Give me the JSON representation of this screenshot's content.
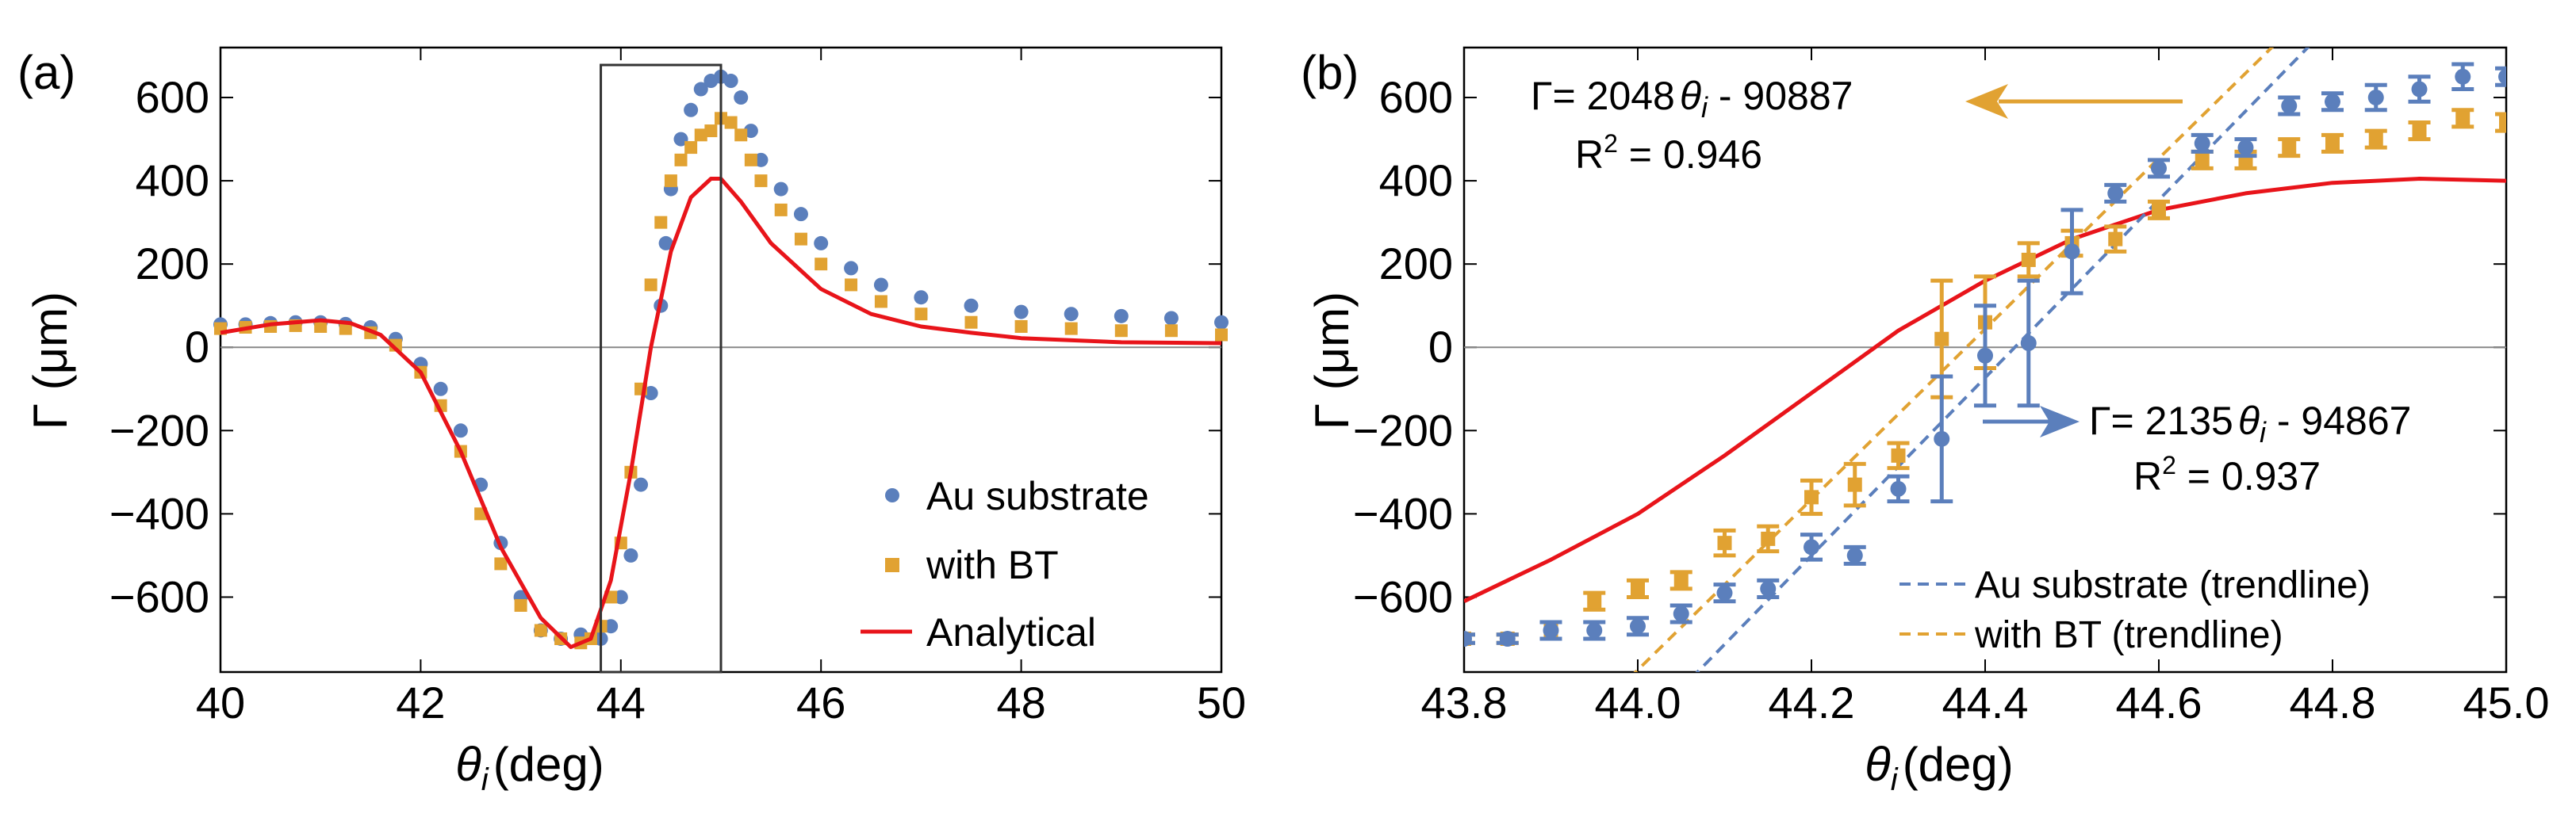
{
  "colors": {
    "blue": "#5B7FBC",
    "orange": "#E1A232",
    "red": "#E8141A",
    "frame": "#000000",
    "zero": "#888888",
    "box": "#333333"
  },
  "panel_a": {
    "label": "(a)",
    "ylabel": "Γ (μm)",
    "xlabel_theta": "θ",
    "xlabel_sub": "i",
    "xlabel_unit": "(deg)",
    "legend": [
      "Au substrate",
      "with BT",
      "Analytical"
    ]
  },
  "panel_b": {
    "label": "(b)",
    "ylabel": "Γ (μm)",
    "xlabel_theta": "θ",
    "xlabel_sub": "i",
    "xlabel_unit": "(deg)",
    "fit_bt": {
      "eq_prefix": "Γ= 2048",
      "eq_suffix": " - 90887",
      "r2_prefix": "R",
      "r2_sup": "2",
      "r2_value": " = 0.946"
    },
    "fit_au": {
      "eq_prefix": "Γ= 2135",
      "eq_suffix": " - 94867",
      "r2_prefix": "R",
      "r2_sup": "2",
      "r2_value": " = 0.937"
    },
    "legend": [
      "Au substrate (trendline)",
      "with BT (trendline)"
    ]
  },
  "chart_data": [
    {
      "type": "scatter",
      "title": "(a)",
      "xlabel": "θi (deg)",
      "ylabel": "Γ (μm)",
      "xlim": [
        40,
        50
      ],
      "ylim": [
        -780,
        720
      ],
      "xticks": [
        40,
        42,
        44,
        46,
        48,
        50
      ],
      "yticks": [
        -600,
        -400,
        -200,
        0,
        200,
        400,
        600
      ],
      "highlight_box": {
        "x": [
          43.8,
          45.0
        ],
        "y": [
          -780,
          720
        ]
      },
      "series": [
        {
          "name": "Au substrate",
          "marker": "circle",
          "x": [
            40.0,
            40.25,
            40.5,
            40.75,
            41.0,
            41.25,
            41.5,
            41.75,
            42.0,
            42.2,
            42.4,
            42.6,
            42.8,
            43.0,
            43.2,
            43.4,
            43.6,
            43.8,
            43.9,
            44.0,
            44.1,
            44.2,
            44.3,
            44.4,
            44.45,
            44.5,
            44.6,
            44.7,
            44.8,
            44.9,
            45.0,
            45.1,
            45.2,
            45.3,
            45.4,
            45.6,
            45.8,
            46.0,
            46.3,
            46.6,
            47.0,
            47.5,
            48.0,
            48.5,
            49.0,
            49.5,
            50.0
          ],
          "y": [
            55,
            55,
            58,
            60,
            60,
            56,
            48,
            20,
            -40,
            -100,
            -200,
            -330,
            -470,
            -600,
            -680,
            -700,
            -690,
            -700,
            -670,
            -600,
            -500,
            -330,
            -110,
            100,
            250,
            380,
            500,
            570,
            620,
            640,
            650,
            640,
            600,
            520,
            450,
            380,
            320,
            250,
            190,
            150,
            120,
            100,
            85,
            80,
            75,
            70,
            60
          ]
        },
        {
          "name": "with BT",
          "marker": "square",
          "x": [
            40.0,
            40.25,
            40.5,
            40.75,
            41.0,
            41.25,
            41.5,
            41.75,
            42.0,
            42.2,
            42.4,
            42.6,
            42.8,
            43.0,
            43.2,
            43.4,
            43.6,
            43.7,
            43.8,
            43.9,
            44.0,
            44.1,
            44.2,
            44.3,
            44.4,
            44.5,
            44.6,
            44.7,
            44.8,
            44.9,
            45.0,
            45.1,
            45.2,
            45.3,
            45.4,
            45.6,
            45.8,
            46.0,
            46.3,
            46.6,
            47.0,
            47.5,
            48.0,
            48.5,
            49.0,
            49.5,
            50.0
          ],
          "y": [
            45,
            48,
            50,
            52,
            50,
            45,
            35,
            5,
            -60,
            -140,
            -250,
            -400,
            -520,
            -620,
            -680,
            -700,
            -710,
            -700,
            -670,
            -600,
            -470,
            -300,
            -100,
            150,
            300,
            400,
            450,
            480,
            510,
            520,
            550,
            540,
            510,
            450,
            400,
            330,
            260,
            200,
            150,
            110,
            80,
            60,
            50,
            45,
            40,
            40,
            30
          ]
        },
        {
          "name": "Analytical",
          "marker": "line",
          "x": [
            40.0,
            40.5,
            41.0,
            41.3,
            41.6,
            42.0,
            42.4,
            42.8,
            43.2,
            43.5,
            43.7,
            43.9,
            44.1,
            44.3,
            44.5,
            44.7,
            44.9,
            45.0,
            45.2,
            45.5,
            46.0,
            46.5,
            47.0,
            47.5,
            48.0,
            49.0,
            50.0
          ],
          "y": [
            35,
            55,
            65,
            58,
            30,
            -60,
            -250,
            -480,
            -650,
            -720,
            -700,
            -560,
            -300,
            0,
            230,
            360,
            405,
            405,
            350,
            250,
            140,
            80,
            50,
            35,
            22,
            12,
            10
          ]
        }
      ]
    },
    {
      "type": "scatter",
      "title": "(b)",
      "xlabel": "θi (deg)",
      "ylabel": "Γ (μm)",
      "xlim": [
        43.8,
        45.0
      ],
      "ylim": [
        -780,
        720
      ],
      "xticks": [
        43.8,
        44.0,
        44.2,
        44.4,
        44.6,
        44.8,
        45.0
      ],
      "yticks": [
        -600,
        -400,
        -200,
        0,
        200,
        400,
        600
      ],
      "series": [
        {
          "name": "Au substrate",
          "marker": "circle-errorbar",
          "x": [
            43.8,
            43.85,
            43.9,
            43.95,
            44.0,
            44.05,
            44.1,
            44.15,
            44.2,
            44.25,
            44.3,
            44.35,
            44.4,
            44.45,
            44.5,
            44.55,
            44.6,
            44.65,
            44.7,
            44.75,
            44.8,
            44.85,
            44.9,
            44.95,
            45.0
          ],
          "y": [
            -700,
            -700,
            -680,
            -680,
            -670,
            -640,
            -590,
            -580,
            -480,
            -500,
            -340,
            -220,
            -20,
            10,
            230,
            370,
            430,
            490,
            480,
            580,
            590,
            600,
            620,
            650,
            650
          ],
          "err": [
            10,
            10,
            20,
            20,
            20,
            20,
            20,
            20,
            30,
            20,
            30,
            150,
            120,
            150,
            100,
            20,
            20,
            20,
            20,
            20,
            20,
            30,
            30,
            30,
            20
          ]
        },
        {
          "name": "with BT",
          "marker": "square-errorbar",
          "x": [
            43.8,
            43.85,
            43.9,
            43.95,
            44.0,
            44.05,
            44.1,
            44.15,
            44.2,
            44.25,
            44.3,
            44.35,
            44.4,
            44.45,
            44.5,
            44.55,
            44.6,
            44.65,
            44.7,
            44.75,
            44.8,
            44.85,
            44.9,
            44.95,
            45.0
          ],
          "y": [
            -700,
            -700,
            -680,
            -610,
            -580,
            -560,
            -470,
            -460,
            -360,
            -330,
            -260,
            20,
            60,
            210,
            250,
            260,
            330,
            450,
            450,
            480,
            490,
            500,
            520,
            550,
            540
          ],
          "err": [
            10,
            10,
            20,
            20,
            20,
            20,
            30,
            30,
            40,
            50,
            30,
            140,
            110,
            40,
            30,
            30,
            20,
            20,
            20,
            20,
            20,
            20,
            20,
            20,
            20
          ]
        },
        {
          "name": "Au substrate (trendline)",
          "marker": "dashed",
          "slope": 2135,
          "intercept": -94867
        },
        {
          "name": "with BT (trendline)",
          "marker": "dashed",
          "slope": 2048,
          "intercept": -90887
        },
        {
          "name": "Analytical",
          "marker": "line",
          "x": [
            43.8,
            43.9,
            44.0,
            44.1,
            44.2,
            44.3,
            44.4,
            44.5,
            44.6,
            44.7,
            44.8,
            44.9,
            45.0
          ],
          "y": [
            -610,
            -510,
            -400,
            -260,
            -110,
            40,
            160,
            260,
            330,
            370,
            395,
            405,
            400
          ]
        }
      ]
    }
  ]
}
